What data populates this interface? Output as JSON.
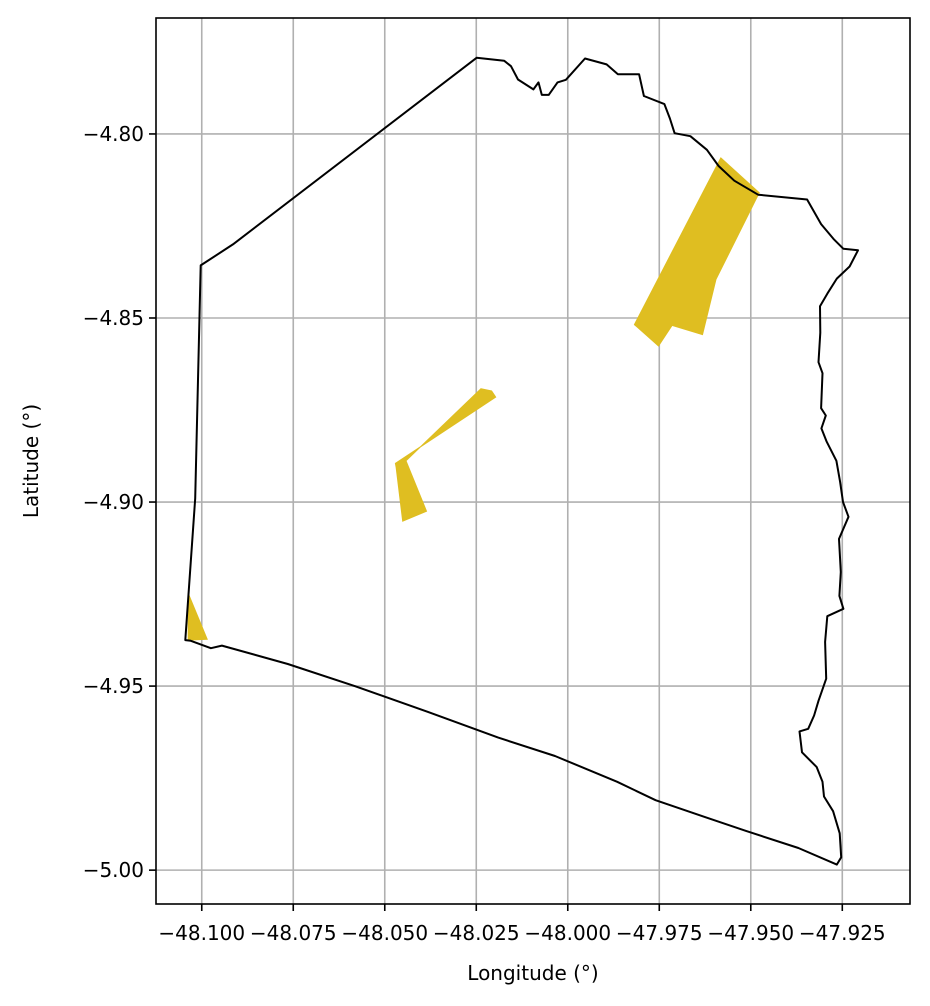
{
  "chart_data": {
    "type": "map",
    "xlabel": "Longitude (°)",
    "ylabel": "Latitude (°)",
    "xlim": [
      -48.1125,
      -47.9065
    ],
    "ylim": [
      -5.0092,
      -4.7685
    ],
    "grid": true,
    "x_ticks": [
      {
        "value": -48.1,
        "label": "−48.100"
      },
      {
        "value": -48.075,
        "label": "−48.075"
      },
      {
        "value": -48.05,
        "label": "−48.050"
      },
      {
        "value": -48.025,
        "label": "−48.025"
      },
      {
        "value": -48.0,
        "label": "−48.000"
      },
      {
        "value": -47.975,
        "label": "−47.975"
      },
      {
        "value": -47.95,
        "label": "−47.950"
      },
      {
        "value": -47.925,
        "label": "−47.925"
      }
    ],
    "y_ticks": [
      {
        "value": -4.8,
        "label": "−4.80"
      },
      {
        "value": -4.85,
        "label": "−4.85"
      },
      {
        "value": -4.9,
        "label": "−4.90"
      },
      {
        "value": -4.95,
        "label": "−4.95"
      },
      {
        "value": -5.0,
        "label": "−5.00"
      }
    ],
    "boundary": {
      "color": "#000000",
      "points": [
        [
          -48.1003,
          -4.8357
        ],
        [
          -48.0915,
          -4.83
        ],
        [
          -48.0249,
          -4.7793
        ],
        [
          -48.0174,
          -4.7801
        ],
        [
          -48.0155,
          -4.7816
        ],
        [
          -48.0136,
          -4.7852
        ],
        [
          -48.0094,
          -4.7879
        ],
        [
          -48.008,
          -4.786
        ],
        [
          -48.0071,
          -4.7894
        ],
        [
          -48.0052,
          -4.7894
        ],
        [
          -48.0028,
          -4.786
        ],
        [
          -48.0005,
          -4.7853
        ],
        [
          -47.9953,
          -4.7795
        ],
        [
          -47.9894,
          -4.7811
        ],
        [
          -47.9863,
          -4.7838
        ],
        [
          -47.9805,
          -4.7838
        ],
        [
          -47.9792,
          -4.7897
        ],
        [
          -47.9736,
          -4.7919
        ],
        [
          -47.9721,
          -4.7958
        ],
        [
          -47.9708,
          -4.7998
        ],
        [
          -47.9665,
          -4.8006
        ],
        [
          -47.962,
          -4.8043
        ],
        [
          -47.9588,
          -4.8087
        ],
        [
          -47.9545,
          -4.8127
        ],
        [
          -47.948,
          -4.8165
        ],
        [
          -47.9346,
          -4.8178
        ],
        [
          -47.9308,
          -4.8245
        ],
        [
          -47.9274,
          -4.8285
        ],
        [
          -47.9247,
          -4.8312
        ],
        [
          -47.9207,
          -4.8316
        ],
        [
          -47.923,
          -4.836
        ],
        [
          -47.9265,
          -4.8393
        ],
        [
          -47.9291,
          -4.8434
        ],
        [
          -47.9311,
          -4.8468
        ],
        [
          -47.931,
          -4.854
        ],
        [
          -47.9315,
          -4.862
        ],
        [
          -47.9304,
          -4.865
        ],
        [
          -47.9308,
          -4.8745
        ],
        [
          -47.9295,
          -4.8765
        ],
        [
          -47.9307,
          -4.88
        ],
        [
          -47.9293,
          -4.8835
        ],
        [
          -47.9266,
          -4.8888
        ],
        [
          -47.9256,
          -4.8945
        ],
        [
          -47.9248,
          -4.9
        ],
        [
          -47.9233,
          -4.904
        ],
        [
          -47.9259,
          -4.91
        ],
        [
          -47.9254,
          -4.919
        ],
        [
          -47.9258,
          -4.9255
        ],
        [
          -47.9247,
          -4.929
        ],
        [
          -47.9291,
          -4.931
        ],
        [
          -47.9297,
          -4.938
        ],
        [
          -47.9294,
          -4.948
        ],
        [
          -47.9315,
          -4.954
        ],
        [
          -47.9327,
          -4.958
        ],
        [
          -47.9343,
          -4.9616
        ],
        [
          -47.9367,
          -4.9623
        ],
        [
          -47.936,
          -4.968
        ],
        [
          -47.932,
          -4.972
        ],
        [
          -47.9304,
          -4.976
        ],
        [
          -47.93,
          -4.98
        ],
        [
          -47.9275,
          -4.984
        ],
        [
          -47.9257,
          -4.99
        ],
        [
          -47.9253,
          -4.9965
        ],
        [
          -47.9265,
          -4.9985
        ],
        [
          -47.937,
          -4.994
        ],
        [
          -47.9515,
          -4.9893
        ],
        [
          -47.9625,
          -4.9856
        ],
        [
          -47.976,
          -4.981
        ],
        [
          -47.9865,
          -4.976
        ],
        [
          -48.0035,
          -4.969
        ],
        [
          -48.019,
          -4.964
        ],
        [
          -48.0382,
          -4.957
        ],
        [
          -48.0582,
          -4.95
        ],
        [
          -48.0765,
          -4.944
        ],
        [
          -48.0945,
          -4.939
        ],
        [
          -48.0975,
          -4.9397
        ],
        [
          -48.103,
          -4.9377
        ],
        [
          -48.1045,
          -4.9375
        ],
        [
          -48.1018,
          -4.899
        ],
        [
          -48.1003,
          -4.8357
        ]
      ]
    },
    "features": {
      "color": "#dfbe21",
      "polygons": [
        [
          [
            -47.9582,
            -4.8065
          ],
          [
            -47.9477,
            -4.816
          ],
          [
            -47.9595,
            -4.8395
          ],
          [
            -47.9632,
            -4.8545
          ],
          [
            -47.9715,
            -4.852
          ],
          [
            -47.9752,
            -4.8576
          ],
          [
            -47.9818,
            -4.8518
          ]
        ],
        [
          [
            -48.0237,
            -4.8692
          ],
          [
            -48.0208,
            -4.8698
          ],
          [
            -48.0197,
            -4.8715
          ],
          [
            -48.0471,
            -4.8895
          ],
          [
            -48.0469,
            -4.8905
          ],
          [
            -48.0451,
            -4.9052
          ],
          [
            -48.0386,
            -4.9025
          ],
          [
            -48.0442,
            -4.8888
          ]
        ],
        [
          [
            -48.1037,
            -4.9248
          ],
          [
            -48.1037,
            -4.9375
          ],
          [
            -48.0985,
            -4.9373
          ]
        ]
      ]
    }
  }
}
